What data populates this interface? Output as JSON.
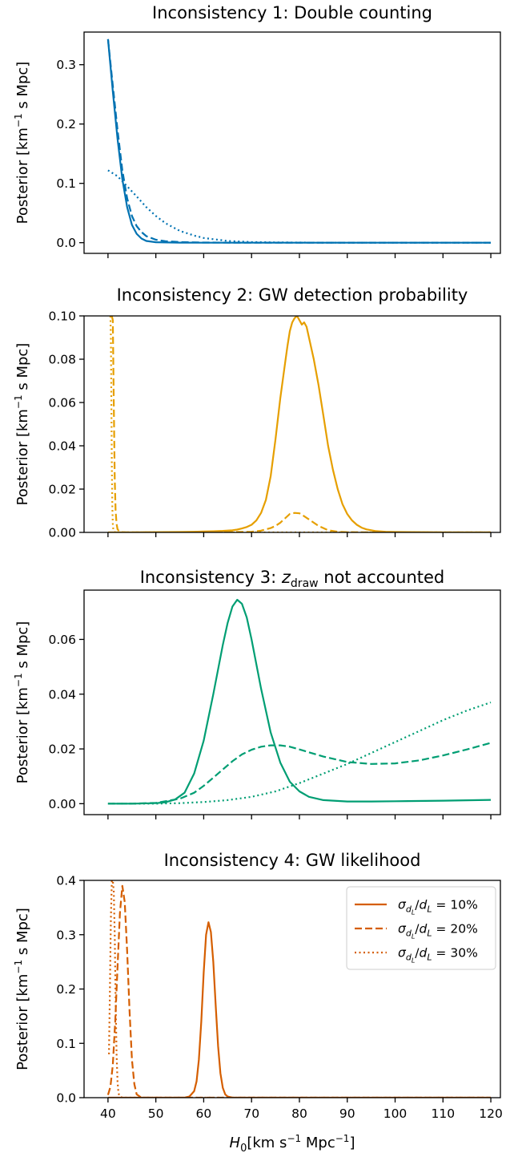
{
  "chart_data": [
    {
      "type": "line",
      "title_prefix": "Inconsistency 1: Double counting",
      "title_math": "",
      "title_suffix": "",
      "ylabel": "Posterior [km",
      "ylabel_sup": "−1",
      "ylabel_rest": " s Mpc]",
      "xlim": [
        35,
        122
      ],
      "ylim": [
        -0.018,
        0.355
      ],
      "xticks": [
        40,
        50,
        60,
        70,
        80,
        90,
        100,
        110,
        120
      ],
      "xtick_labels_shown": false,
      "yticks": [
        0.0,
        0.1,
        0.2,
        0.3
      ],
      "ytick_labels": [
        "0.0",
        "0.1",
        "0.2",
        "0.3"
      ],
      "color": "#0072b2",
      "series": [
        {
          "style": "solid",
          "x": [
            40,
            41,
            42,
            43,
            44,
            45,
            46,
            47,
            48,
            50,
            55,
            60,
            70,
            80,
            100,
            120
          ],
          "y": [
            0.343,
            0.255,
            0.175,
            0.107,
            0.06,
            0.03,
            0.015,
            0.007,
            0.003,
            0.0008,
            0.0001,
            0.0,
            0.0,
            0.0,
            0.0,
            0.0
          ]
        },
        {
          "style": "dashed",
          "x": [
            40,
            41,
            42,
            43,
            44,
            45,
            46,
            47,
            48,
            50,
            52,
            55,
            60,
            70,
            80,
            100,
            120
          ],
          "y": [
            0.343,
            0.265,
            0.19,
            0.122,
            0.075,
            0.045,
            0.028,
            0.018,
            0.011,
            0.005,
            0.0025,
            0.001,
            0.0002,
            0.0,
            0.0,
            0.0,
            0.0
          ]
        },
        {
          "style": "dotted",
          "x": [
            40,
            42,
            44,
            46,
            48,
            50,
            52,
            55,
            58,
            60,
            65,
            70,
            75,
            80,
            90,
            100,
            120
          ],
          "y": [
            0.122,
            0.112,
            0.095,
            0.078,
            0.06,
            0.045,
            0.033,
            0.02,
            0.012,
            0.008,
            0.003,
            0.001,
            0.0005,
            0.0002,
            0.0,
            0.0,
            0.0
          ]
        }
      ]
    },
    {
      "type": "line",
      "title_prefix": "Inconsistency 2: GW detection probability",
      "title_math": "",
      "title_suffix": "",
      "ylabel": "Posterior [km",
      "ylabel_sup": "−1",
      "ylabel_rest": " s Mpc]",
      "xlim": [
        35,
        122
      ],
      "ylim": [
        0.0,
        0.1
      ],
      "xticks": [
        40,
        50,
        60,
        70,
        80,
        90,
        100,
        110,
        120
      ],
      "xtick_labels_shown": false,
      "yticks": [
        0.0,
        0.02,
        0.04,
        0.06,
        0.08,
        0.1
      ],
      "ytick_labels": [
        "0.00",
        "0.02",
        "0.04",
        "0.06",
        "0.08",
        "0.10"
      ],
      "color": "#e69f00",
      "series": [
        {
          "style": "solid",
          "x": [
            40,
            45,
            50,
            55,
            58,
            60,
            62,
            64,
            66,
            67,
            68,
            69,
            70,
            71,
            72,
            73,
            74,
            75,
            76,
            77,
            77.5,
            78,
            78.5,
            79,
            79.5,
            80,
            80.5,
            81,
            81.5,
            82,
            83,
            84,
            85,
            86,
            87,
            88,
            89,
            90,
            91,
            92,
            93,
            94,
            96,
            98,
            100,
            105,
            110,
            120
          ],
          "y": [
            0.0,
            0.0,
            0.0001,
            0.0002,
            0.0003,
            0.0004,
            0.0005,
            0.0007,
            0.001,
            0.0013,
            0.0018,
            0.0025,
            0.0035,
            0.0055,
            0.009,
            0.015,
            0.026,
            0.043,
            0.062,
            0.078,
            0.086,
            0.093,
            0.097,
            0.099,
            0.1,
            0.098,
            0.096,
            0.097,
            0.095,
            0.09,
            0.08,
            0.068,
            0.054,
            0.04,
            0.029,
            0.02,
            0.013,
            0.0085,
            0.0055,
            0.0035,
            0.0022,
            0.0014,
            0.0006,
            0.0003,
            0.0002,
            0.0001,
            0.0,
            0.0
          ]
        },
        {
          "style": "dashed",
          "x": [
            40.8,
            41.0,
            41.2,
            41.4,
            41.6,
            41.8,
            42.0,
            42.3,
            42.6,
            43.0,
            44,
            46,
            50,
            55,
            60,
            65,
            70,
            72,
            74,
            75,
            76,
            77,
            78,
            79,
            80,
            81,
            82,
            83,
            84,
            85,
            86,
            88,
            90,
            95,
            100,
            120
          ],
          "y": [
            0.1,
            0.098,
            0.06,
            0.025,
            0.01,
            0.004,
            0.0015,
            0.0006,
            0.0002,
            0.0001,
            0.0,
            0.0,
            0.0,
            0.0,
            0.0001,
            0.0001,
            0.0003,
            0.0008,
            0.002,
            0.003,
            0.0045,
            0.0065,
            0.0085,
            0.009,
            0.0088,
            0.0075,
            0.006,
            0.0045,
            0.003,
            0.002,
            0.001,
            0.0003,
            0.0001,
            0.0,
            0.0,
            0.0
          ]
        },
        {
          "style": "dotted",
          "x": [
            40.5,
            40.6,
            40.7,
            40.8,
            40.9,
            41.0,
            41.1,
            41.2,
            41.4,
            41.6,
            42,
            44,
            50,
            60,
            80,
            100,
            120
          ],
          "y": [
            0.1,
            0.09,
            0.06,
            0.03,
            0.012,
            0.004,
            0.0015,
            0.0005,
            0.0002,
            0.0,
            0.0,
            0.0,
            0.0,
            0.0,
            0.0,
            0.0,
            0.0
          ]
        }
      ]
    },
    {
      "type": "line",
      "title_prefix": "Inconsistency 3: ",
      "title_math": "z",
      "title_math_sub": "draw",
      "title_suffix": " not accounted",
      "ylabel": "Posterior [km",
      "ylabel_sup": "−1",
      "ylabel_rest": " s Mpc]",
      "xlim": [
        35,
        122
      ],
      "ylim": [
        -0.004,
        0.078
      ],
      "xticks": [
        40,
        50,
        60,
        70,
        80,
        90,
        100,
        110,
        120
      ],
      "xtick_labels_shown": false,
      "yticks": [
        0.0,
        0.02,
        0.04,
        0.06
      ],
      "ytick_labels": [
        "0.00",
        "0.02",
        "0.04",
        "0.06"
      ],
      "color": "#009e73",
      "series": [
        {
          "style": "solid",
          "x": [
            40,
            45,
            50,
            52,
            54,
            56,
            58,
            60,
            62,
            64,
            65,
            66,
            67,
            68,
            69,
            70,
            72,
            74,
            76,
            78,
            80,
            82,
            85,
            90,
            95,
            100,
            110,
            120
          ],
          "y": [
            0.0,
            0.0,
            0.0002,
            0.0005,
            0.0015,
            0.004,
            0.011,
            0.023,
            0.04,
            0.058,
            0.066,
            0.072,
            0.0745,
            0.073,
            0.068,
            0.06,
            0.042,
            0.026,
            0.015,
            0.008,
            0.0045,
            0.0025,
            0.0013,
            0.0008,
            0.0008,
            0.0009,
            0.0011,
            0.0014
          ]
        },
        {
          "style": "dashed",
          "x": [
            40,
            45,
            50,
            55,
            58,
            60,
            62,
            64,
            66,
            68,
            70,
            72,
            74,
            76,
            78,
            80,
            85,
            90,
            95,
            100,
            105,
            110,
            115,
            120
          ],
          "y": [
            0.0,
            0.0,
            0.0003,
            0.0018,
            0.004,
            0.0065,
            0.0095,
            0.0125,
            0.0155,
            0.018,
            0.0197,
            0.0208,
            0.0213,
            0.0213,
            0.0208,
            0.0198,
            0.0172,
            0.0152,
            0.0145,
            0.0147,
            0.0158,
            0.0176,
            0.0198,
            0.0222
          ]
        },
        {
          "style": "dotted",
          "x": [
            40,
            50,
            55,
            60,
            65,
            70,
            75,
            80,
            85,
            90,
            95,
            100,
            105,
            110,
            115,
            120
          ],
          "y": [
            0.0,
            0.0,
            0.0002,
            0.0006,
            0.0013,
            0.0025,
            0.0045,
            0.0075,
            0.011,
            0.0145,
            0.0185,
            0.0225,
            0.0265,
            0.0305,
            0.034,
            0.037
          ]
        }
      ]
    },
    {
      "type": "line",
      "title_prefix": "Inconsistency 4: GW likelihood",
      "title_math": "",
      "title_suffix": "",
      "ylabel": "Posterior [km",
      "ylabel_sup": "−1",
      "ylabel_rest": " s Mpc]",
      "xlabel_main": "H",
      "xlabel_sub": "0",
      "xlabel_rest": "[km s",
      "xlabel_sup1": "−1",
      "xlabel_mid": " Mpc",
      "xlabel_sup2": "−1",
      "xlabel_end": "]",
      "xlim": [
        35,
        122
      ],
      "ylim": [
        0.0,
        0.4
      ],
      "xticks": [
        40,
        50,
        60,
        70,
        80,
        90,
        100,
        110,
        120
      ],
      "xtick_labels": [
        "40",
        "50",
        "60",
        "70",
        "80",
        "90",
        "100",
        "110",
        "120"
      ],
      "xtick_labels_shown": true,
      "yticks": [
        0.0,
        0.1,
        0.2,
        0.3,
        0.4
      ],
      "ytick_labels": [
        "0.0",
        "0.1",
        "0.2",
        "0.3",
        "0.4"
      ],
      "color": "#d55e00",
      "legend_position": "top-right",
      "legend": [
        {
          "style": "solid",
          "label_pct": "10%"
        },
        {
          "style": "dashed",
          "label_pct": "20%"
        },
        {
          "style": "dotted",
          "label_pct": "30%"
        }
      ],
      "series": [
        {
          "style": "solid",
          "x": [
            40,
            50,
            56,
            57,
            58,
            58.5,
            59,
            59.5,
            60,
            60.5,
            61,
            61.5,
            62,
            62.5,
            63,
            63.5,
            64,
            64.5,
            65,
            66,
            70,
            80,
            100,
            120
          ],
          "y": [
            0.0,
            0.0,
            0.0,
            0.002,
            0.012,
            0.03,
            0.07,
            0.14,
            0.23,
            0.3,
            0.323,
            0.305,
            0.25,
            0.17,
            0.095,
            0.045,
            0.018,
            0.006,
            0.002,
            0.0,
            0.0,
            0.0,
            0.0,
            0.0
          ]
        },
        {
          "style": "dashed",
          "x": [
            40,
            40.5,
            41,
            41.5,
            42,
            42.5,
            43,
            43.5,
            44,
            44.5,
            45,
            45.5,
            46,
            47,
            50,
            60,
            80,
            100,
            120
          ],
          "y": [
            0.005,
            0.02,
            0.06,
            0.14,
            0.24,
            0.34,
            0.39,
            0.36,
            0.27,
            0.16,
            0.07,
            0.025,
            0.006,
            0.0,
            0.0,
            0.0,
            0.0,
            0.0,
            0.0
          ]
        },
        {
          "style": "dotted",
          "x": [
            40.2,
            40.4,
            40.6,
            40.8,
            41,
            41.2,
            41.4,
            41.6,
            41.8,
            42,
            42.2,
            42.5,
            43,
            45,
            50,
            60,
            80,
            100,
            120
          ],
          "y": [
            0.08,
            0.2,
            0.33,
            0.4,
            0.4,
            0.38,
            0.3,
            0.18,
            0.08,
            0.03,
            0.008,
            0.002,
            0.0,
            0.0,
            0.0,
            0.0,
            0.0,
            0.0,
            0.0
          ]
        }
      ]
    }
  ]
}
